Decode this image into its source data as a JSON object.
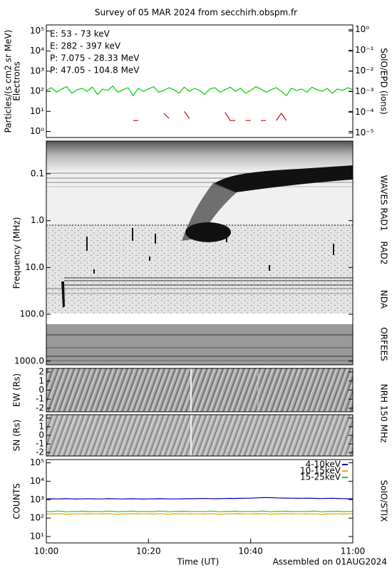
{
  "chart_data": [
    {
      "type": "line",
      "title": "Survey of 05 MAR 2024 from secchirh.obspm.fr",
      "ylabel": [
        "Particles/(s cm2 sr MeV)",
        "Electrons"
      ],
      "side_labels": [
        "SolO/EPD (ions)"
      ],
      "yscale": "log",
      "ylim": [
        0.5,
        200000
      ],
      "yticks": [
        {
          "value": 1,
          "label": "10⁰"
        },
        {
          "value": 10,
          "label": "10¹"
        },
        {
          "value": 100,
          "label": "10²"
        },
        {
          "value": 1000,
          "label": "10³"
        },
        {
          "value": 10000,
          "label": "10⁴"
        },
        {
          "value": 100000,
          "label": "10⁵"
        }
      ],
      "y2lim": [
        6e-06,
        1.7
      ],
      "y2ticks": [
        {
          "value": 1e-05,
          "label": "10⁻⁵"
        },
        {
          "value": 0.0001,
          "label": "10⁻⁴"
        },
        {
          "value": 0.001,
          "label": "10⁻³"
        },
        {
          "value": 0.01,
          "label": "10⁻²"
        },
        {
          "value": 0.1,
          "label": "10⁻¹"
        },
        {
          "value": 1,
          "label": "10⁰"
        }
      ],
      "xlim": [
        0,
        60
      ],
      "x": [
        0,
        1,
        2,
        3,
        4,
        5,
        6,
        7,
        8,
        9,
        10,
        11,
        12,
        13,
        14,
        15,
        16,
        17,
        18,
        19,
        20,
        21,
        22,
        23,
        24,
        25,
        26,
        27,
        28,
        29,
        30,
        31,
        32,
        33,
        34,
        35,
        36,
        37,
        38,
        39,
        40,
        41,
        42,
        43,
        44,
        45,
        46,
        47,
        48,
        49,
        50,
        51,
        52,
        53,
        54,
        55,
        56,
        57,
        58,
        59,
        60
      ],
      "series": [
        {
          "name": "E: 53 - 73 keV",
          "color": "#00cc00",
          "values": [
            110,
            150,
            90,
            130,
            170,
            80,
            120,
            140,
            100,
            160,
            70,
            130,
            110,
            180,
            90,
            120,
            150,
            60,
            140,
            100,
            130,
            170,
            90,
            110,
            150,
            120,
            80,
            160,
            100,
            140,
            110,
            70,
            130,
            150,
            90,
            120,
            160,
            100,
            140,
            80,
            110,
            170,
            130,
            90,
            120,
            150,
            100,
            60,
            140,
            110,
            130,
            90,
            160,
            120,
            100,
            140,
            80,
            130,
            110,
            150,
            120
          ]
        },
        {
          "name": "E: 282 - 397 keV",
          "color": "#dd0000",
          "values": [
            null,
            null,
            null,
            null,
            null,
            null,
            null,
            null,
            null,
            null,
            null,
            null,
            null,
            null,
            null,
            null,
            null,
            3.5,
            3.5,
            null,
            null,
            null,
            null,
            8,
            4.5,
            null,
            null,
            10,
            4.5,
            null,
            null,
            null,
            null,
            null,
            null,
            9,
            3.5,
            3.5,
            null,
            3.5,
            3.5,
            null,
            3.5,
            3.5,
            null,
            3.5,
            8,
            3.5,
            null,
            null,
            null,
            null,
            null,
            null,
            null,
            null,
            null,
            null,
            null,
            null,
            null
          ]
        },
        {
          "name": "P: 7.075 - 28.33 MeV",
          "color": "#000000",
          "values": [
            null,
            null,
            null,
            null,
            null,
            null,
            null,
            null,
            null,
            null,
            null,
            null,
            null,
            null,
            null,
            null,
            null,
            null,
            null,
            null,
            null,
            null,
            null,
            null,
            null,
            null,
            null,
            null,
            null,
            null,
            null,
            null,
            null,
            null,
            null,
            null,
            null,
            null,
            null,
            null,
            null,
            null,
            null,
            null,
            null,
            null,
            null,
            null,
            null,
            null,
            null,
            null,
            null,
            null,
            null,
            null,
            null,
            null,
            null,
            null,
            null
          ]
        },
        {
          "name": "P: 47.05 - 104.8 MeV",
          "color": "#0000cc",
          "values": [
            null,
            null,
            null,
            null,
            null,
            null,
            null,
            null,
            null,
            null,
            null,
            null,
            null,
            null,
            null,
            null,
            null,
            null,
            null,
            null,
            null,
            null,
            null,
            null,
            null,
            null,
            null,
            null,
            null,
            null,
            null,
            null,
            null,
            null,
            null,
            null,
            null,
            null,
            null,
            null,
            null,
            null,
            null,
            null,
            null,
            null,
            null,
            null,
            null,
            null,
            null,
            null,
            null,
            null,
            null,
            null,
            null,
            null,
            null,
            null,
            null
          ]
        }
      ]
    },
    {
      "type": "spectrogram",
      "ylabel": "Frequency (MHz)",
      "side_labels": [
        "WAVES RAD1",
        "RAD2",
        "NDA",
        "ORFEES"
      ],
      "yscale": "log",
      "yinvert": true,
      "ylim": [
        0.02,
        1200
      ],
      "yticks": [
        0.1,
        {
          "value": 1,
          "label": "1.0"
        },
        {
          "value": 10,
          "label": "10.0"
        },
        {
          "value": 100,
          "label": "100.0"
        },
        {
          "value": 1000,
          "label": "1000.0"
        }
      ]
    },
    {
      "type": "heatmap",
      "ylabel": "EW (Rs)",
      "side_labels": [
        "NRH 150 MHz"
      ],
      "ylim": [
        -2.4,
        2.4
      ],
      "yticks": [
        -2,
        -1,
        0,
        1,
        2
      ]
    },
    {
      "type": "heatmap",
      "ylabel": "SN (Rs)",
      "ylim": [
        -2.4,
        2.4
      ],
      "yticks": [
        -2,
        -1,
        0,
        1,
        2
      ]
    },
    {
      "type": "line",
      "ylabel": "COUNTS",
      "side_labels": [
        "SoIO/STIX"
      ],
      "xlabel": "Time (UT)",
      "annotation": "Assembled on 01AUG2024",
      "yscale": "log",
      "ylim": [
        4.5,
        150000
      ],
      "yticks": [
        {
          "value": 10,
          "label": "10¹"
        },
        {
          "value": 100,
          "label": "10²"
        },
        {
          "value": 1000,
          "label": "10³"
        },
        {
          "value": 10000,
          "label": "10⁴"
        },
        {
          "value": 100000,
          "label": "10⁵"
        }
      ],
      "xlim": [
        0,
        60
      ],
      "xticks": [
        {
          "value": 0,
          "label": "10:00"
        },
        {
          "value": 20,
          "label": "10:20"
        },
        {
          "value": 40,
          "label": "10:40"
        },
        {
          "value": 60,
          "label": "11:00"
        }
      ],
      "x": [
        0,
        1,
        2,
        3,
        4,
        5,
        6,
        7,
        8,
        9,
        10,
        11,
        12,
        13,
        14,
        15,
        16,
        17,
        18,
        19,
        20,
        21,
        22,
        23,
        24,
        25,
        26,
        27,
        28,
        29,
        30,
        31,
        32,
        33,
        34,
        35,
        36,
        37,
        38,
        39,
        40,
        41,
        42,
        43,
        44,
        45,
        46,
        47,
        48,
        49,
        50,
        51,
        52,
        53,
        54,
        55,
        56,
        57,
        58,
        59,
        60
      ],
      "series": [
        {
          "name": "4-10keV",
          "color": "#0000aa",
          "values": [
            1100,
            1120,
            1090,
            1110,
            1130,
            1100,
            1080,
            1100,
            1120,
            1110,
            1090,
            1100,
            1130,
            1120,
            1100,
            1090,
            1110,
            1120,
            1100,
            1080,
            1100,
            1110,
            1130,
            1120,
            1100,
            1090,
            1100,
            1120,
            1140,
            1130,
            1150,
            1160,
            1140,
            1120,
            1130,
            1150,
            1170,
            1160,
            1180,
            1200,
            1220,
            1250,
            1280,
            1300,
            1280,
            1250,
            1230,
            1220,
            1200,
            1180,
            1190,
            1200,
            1180,
            1160,
            1150,
            1170,
            1180,
            1160,
            1140,
            1120,
            1130
          ]
        },
        {
          "name": "10-15keV",
          "color": "#ff9900",
          "values": [
            170,
            165,
            175,
            170,
            160,
            172,
            168,
            175,
            165,
            170,
            170,
            165,
            175,
            170,
            160,
            172,
            168,
            175,
            165,
            170,
            170,
            165,
            175,
            170,
            160,
            172,
            168,
            175,
            165,
            170,
            170,
            165,
            175,
            170,
            160,
            172,
            168,
            175,
            165,
            170,
            170,
            165,
            175,
            170,
            160,
            172,
            168,
            175,
            165,
            170,
            170,
            165,
            175,
            170,
            160,
            172,
            168,
            175,
            165,
            170,
            170
          ]
        },
        {
          "name": "15-25keV",
          "color": "#22cc22",
          "values": [
            230,
            225,
            240,
            235,
            220,
            232,
            228,
            238,
            225,
            230,
            230,
            225,
            240,
            235,
            220,
            232,
            228,
            238,
            225,
            230,
            230,
            225,
            240,
            235,
            220,
            232,
            228,
            238,
            225,
            230,
            230,
            225,
            240,
            235,
            220,
            232,
            228,
            238,
            225,
            230,
            230,
            225,
            240,
            235,
            220,
            232,
            228,
            238,
            225,
            230,
            230,
            225,
            240,
            235,
            220,
            232,
            228,
            238,
            225,
            230,
            230
          ]
        }
      ]
    }
  ]
}
